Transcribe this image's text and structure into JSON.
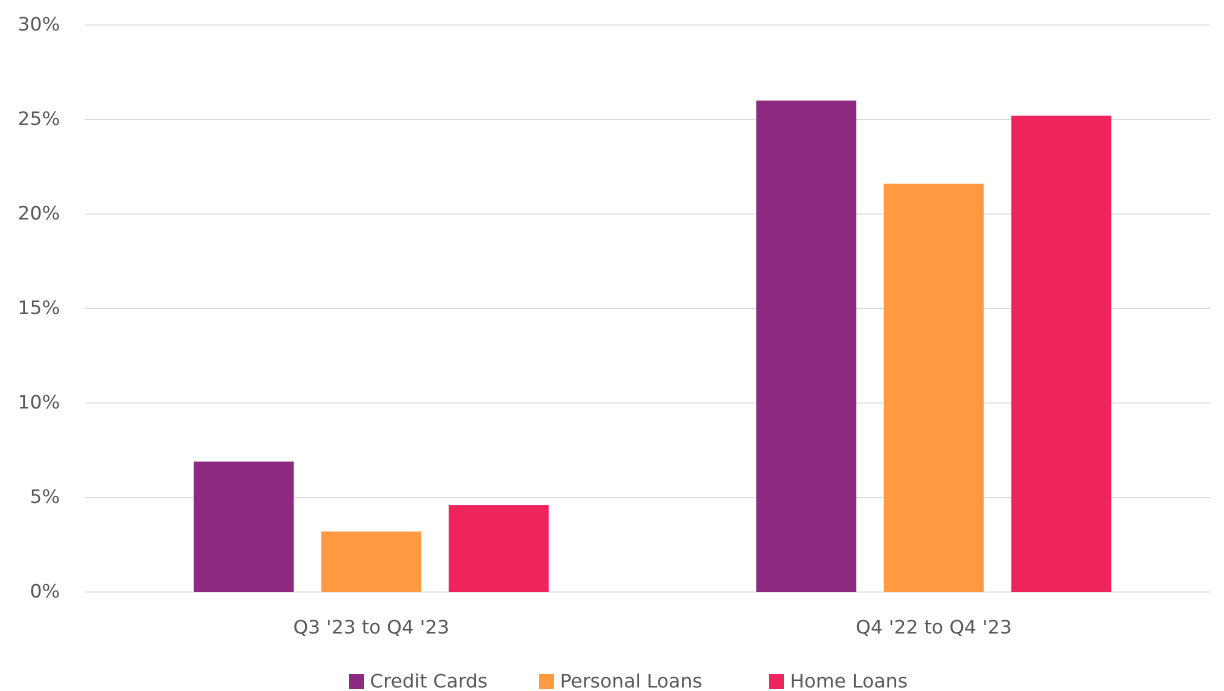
{
  "chart_data": {
    "type": "bar",
    "categories": [
      "Q3 '23 to Q4 '23",
      "Q4 '22 to Q4 '23"
    ],
    "series": [
      {
        "name": "Credit Cards",
        "color": "#8b2a7e",
        "values": [
          6.9,
          26.0
        ]
      },
      {
        "name": "Personal Loans",
        "color": "#ff9a42",
        "values": [
          3.2,
          21.6
        ]
      },
      {
        "name": "Home Loans",
        "color": "#f0245c",
        "values": [
          4.6,
          25.2
        ]
      }
    ],
    "ylim": [
      0,
      30
    ],
    "yticks": [
      {
        "value": 0,
        "label": "0%"
      },
      {
        "value": 5,
        "label": "5%"
      },
      {
        "value": 10,
        "label": "10%"
      },
      {
        "value": 15,
        "label": "15%"
      },
      {
        "value": 20,
        "label": "20%"
      },
      {
        "value": 25,
        "label": "25%"
      },
      {
        "value": 30,
        "label": "30%"
      }
    ],
    "grid": true,
    "legend": "bottom"
  }
}
